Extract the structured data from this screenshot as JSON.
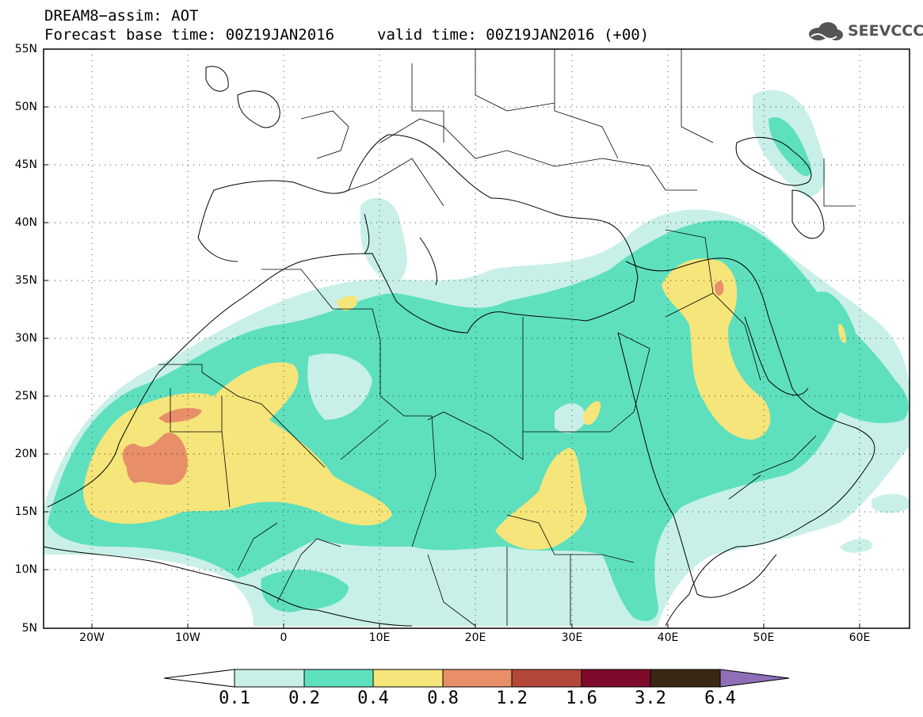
{
  "title_line1": "DREAM8−assim: AOT",
  "title_line2": "Forecast base time: 00Z19JAN2016",
  "valid_time": "valid time: 00Z19JAN2016 (+00)",
  "logo_text": "SEEVCCC",
  "y_ticks": [
    "55N",
    "50N",
    "45N",
    "40N",
    "35N",
    "30N",
    "25N",
    "20N",
    "15N",
    "10N",
    "5N"
  ],
  "x_ticks": [
    "20W",
    "10W",
    "0",
    "10E",
    "20E",
    "30E",
    "40E",
    "50E",
    "60E"
  ],
  "colorbar": {
    "labels": [
      "0.1",
      "0.2",
      "0.4",
      "0.8",
      "1.2",
      "1.6",
      "3.2",
      "6.4"
    ],
    "colors": [
      "#ffffff",
      "#c8f0e8",
      "#5ee0be",
      "#f5e57a",
      "#e88e68",
      "#b3473a",
      "#7e0a2c",
      "#3a2814",
      "#8e6fb8"
    ]
  },
  "colors": {
    "c01": "#c8f0e8",
    "c02": "#5ee0be",
    "c04": "#f5e57a",
    "c08": "#e88e68",
    "c12": "#b3473a"
  }
}
